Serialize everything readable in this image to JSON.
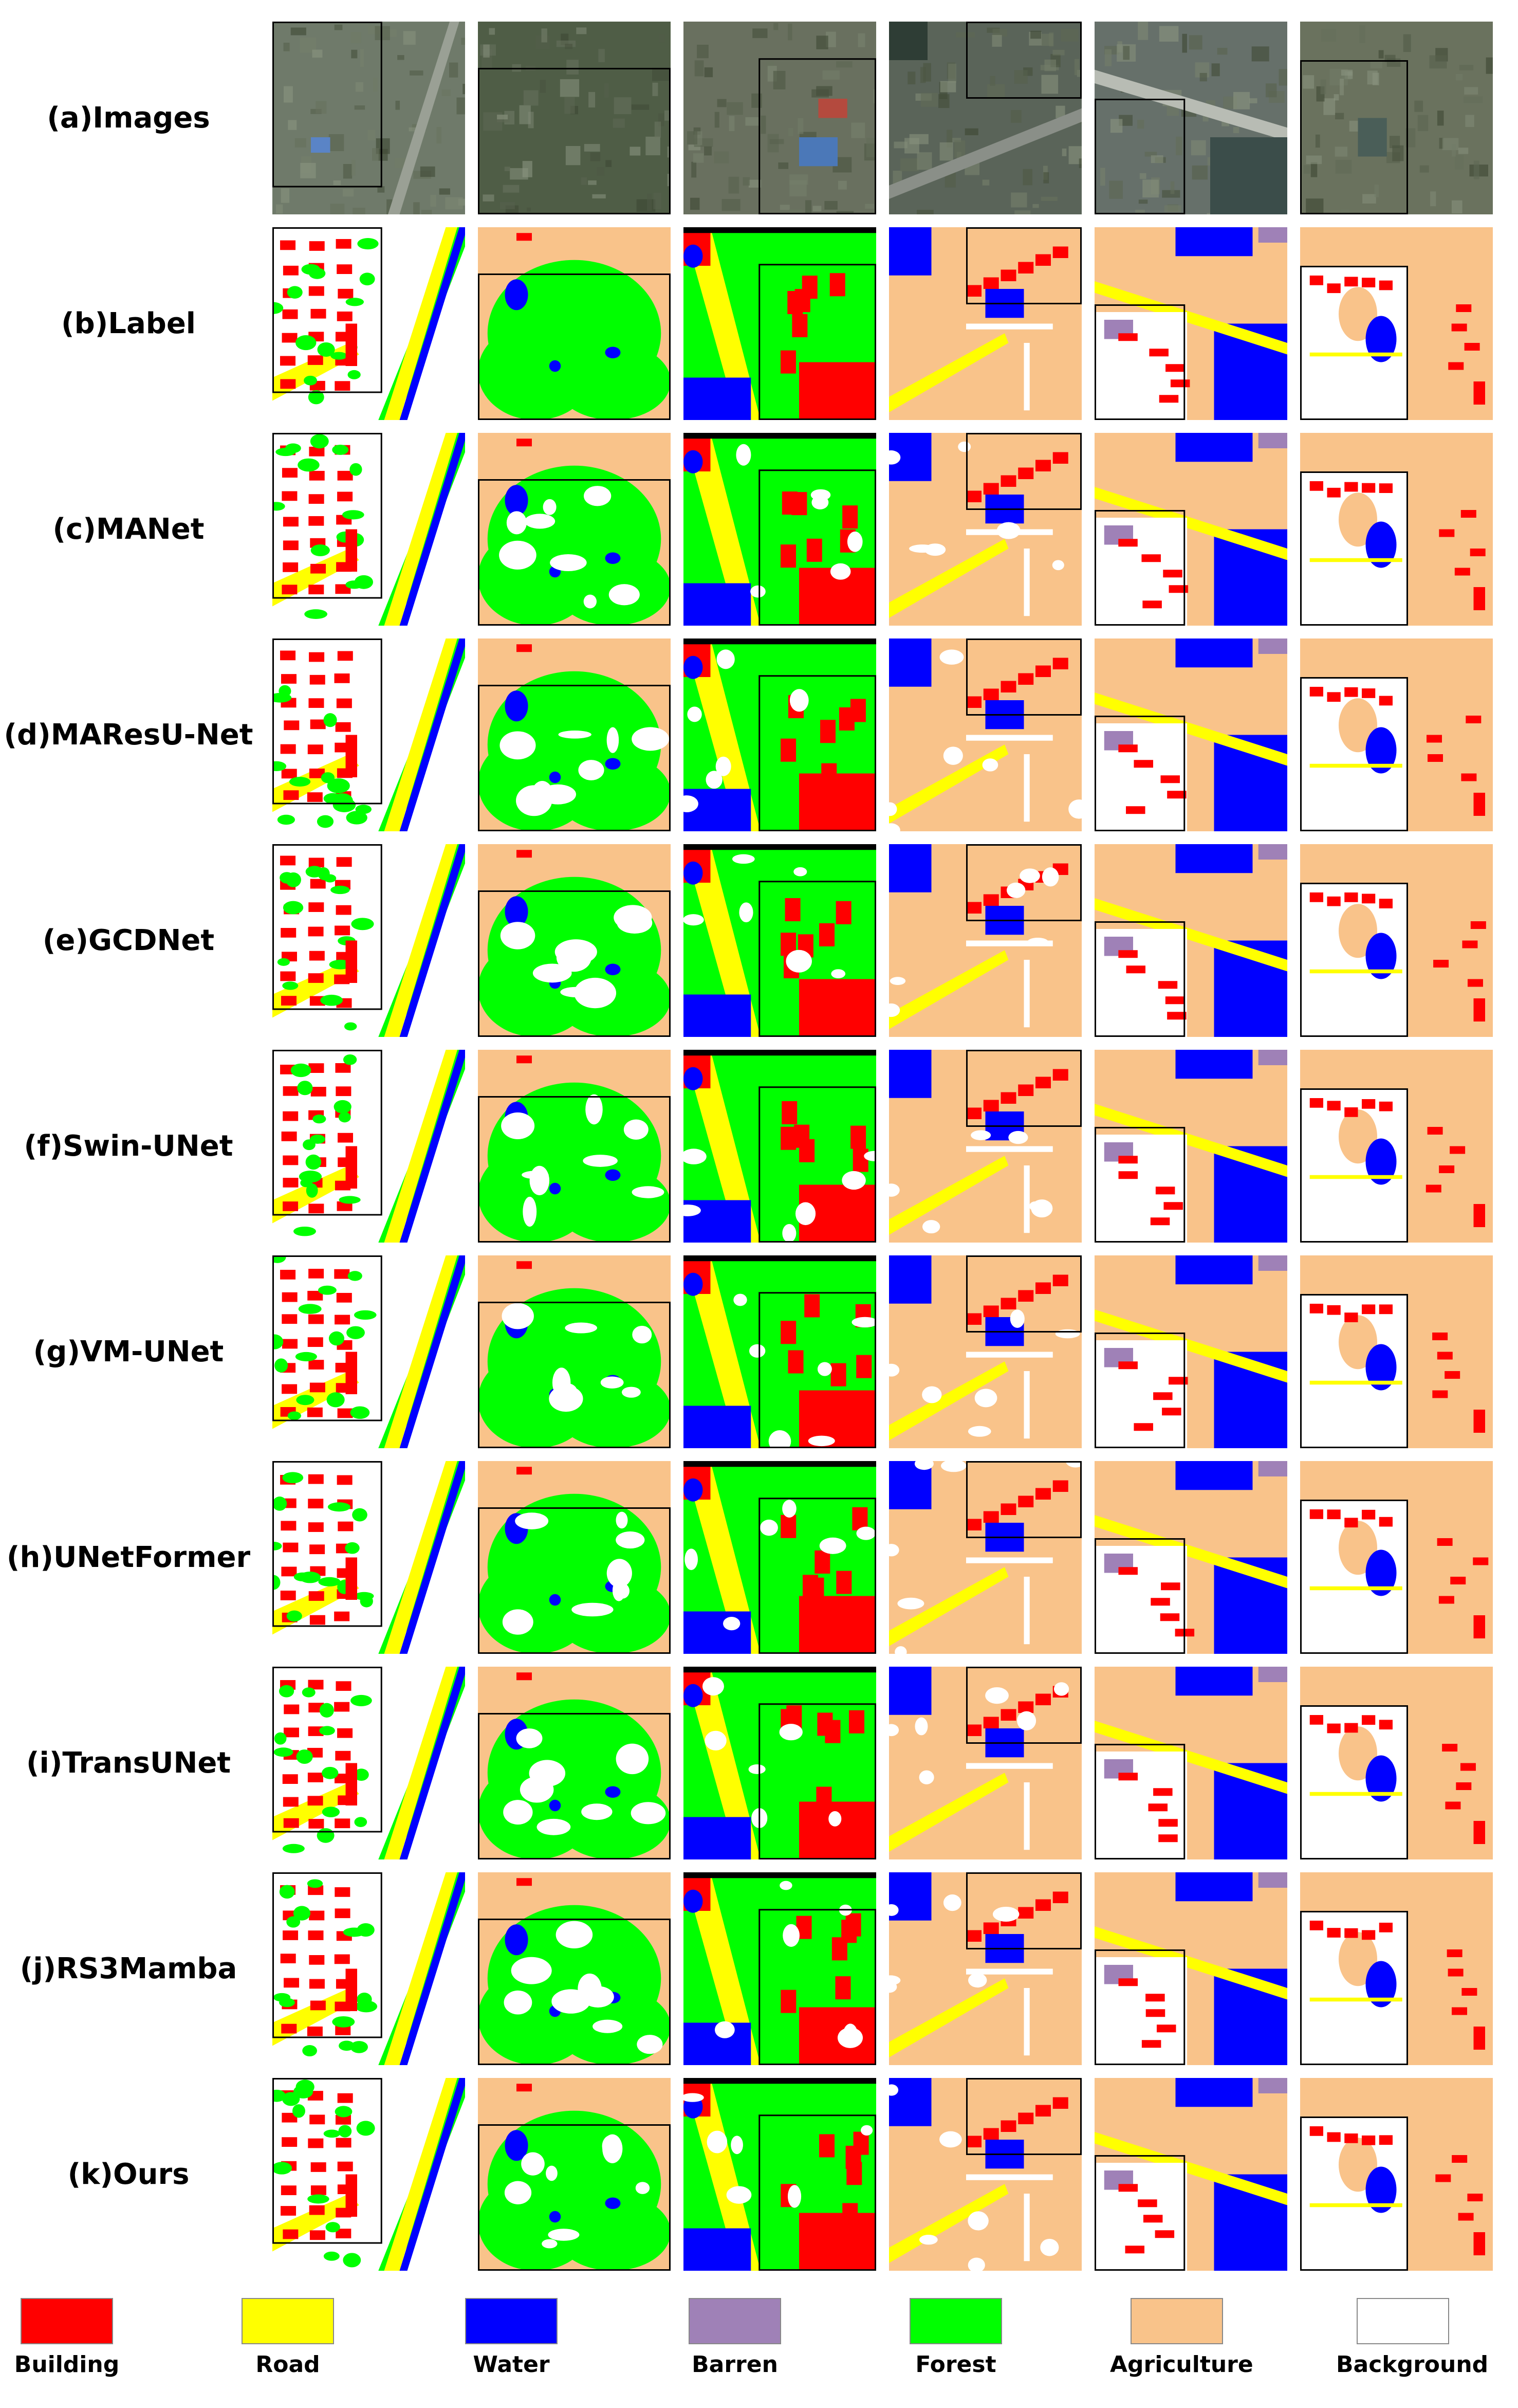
{
  "rows": [
    {
      "label": "(a)Images"
    },
    {
      "label": "(b)Label"
    },
    {
      "label": "(c)MANet"
    },
    {
      "label": "(d)MAResU-Net"
    },
    {
      "label": "(e)GCDNet"
    },
    {
      "label": "(f)Swin-UNet"
    },
    {
      "label": "(g)VM-UNet"
    },
    {
      "label": "(h)UNetFormer"
    },
    {
      "label": "(i)TransUNet"
    },
    {
      "label": "(j)RS3Mamba"
    },
    {
      "label": "(k)Ours"
    }
  ],
  "legend": [
    {
      "label": "Building",
      "color": "#ff0000"
    },
    {
      "label": "Road",
      "color": "#ffff00"
    },
    {
      "label": "Water",
      "color": "#0000ff"
    },
    {
      "label": "Barren",
      "color": "#9f81b7"
    },
    {
      "label": "Forest",
      "color": "#00ff00"
    },
    {
      "label": "Agriculture",
      "color": "#f9c38a"
    },
    {
      "label": "Background",
      "color": "#ffffff"
    }
  ]
}
